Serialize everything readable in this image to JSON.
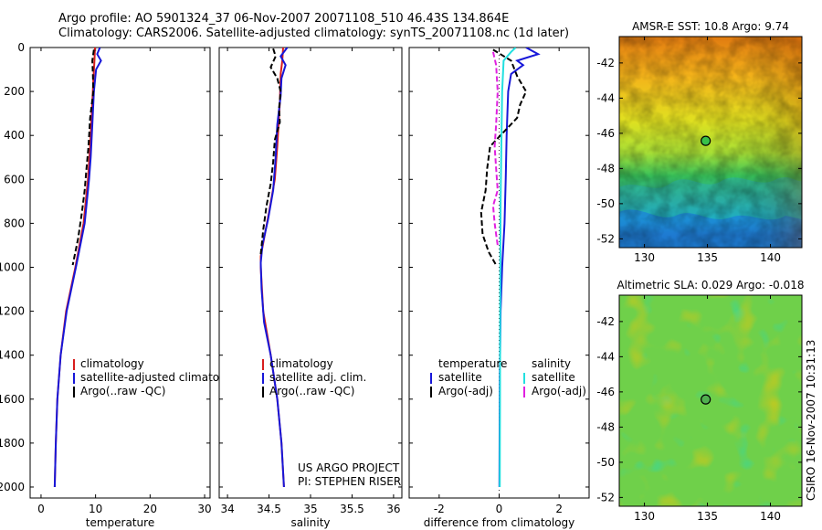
{
  "header": {
    "line1": "Argo profile: AO 5901324_37 06-Nov-2007 20071108_510 46.43S 134.864E",
    "line2": "Climatology: CARS2006. Satellite-adjusted climatology: synTS_20071108.nc (1d later)"
  },
  "side_stamp": "CSIRO 16-Nov-2007 10:31:13",
  "colors": {
    "red": "#d81e1e",
    "blue": "#1717d9",
    "black": "#000000",
    "cyan": "#22e0e0",
    "magenta": "#e020e0"
  },
  "chart_data": [
    {
      "id": "temperature",
      "type": "line",
      "xlabel": "temperature",
      "xlim": [
        -2,
        31
      ],
      "ylim": [
        2050,
        0
      ],
      "xticks": [
        0,
        10,
        20,
        30
      ],
      "yticks": [
        0,
        200,
        400,
        600,
        800,
        1000,
        1200,
        1400,
        1600,
        1800,
        2000
      ],
      "legend": {
        "placement": "lower-middle",
        "entries": [
          "climatology",
          "satellite-adjusted climatology",
          "Argo(..raw -QC)"
        ]
      },
      "series": [
        {
          "name": "climatology",
          "color": "red",
          "dash": "solid",
          "points": [
            [
              9.9,
              0
            ],
            [
              9.8,
              60
            ],
            [
              9.6,
              150
            ],
            [
              9.3,
              300
            ],
            [
              9.0,
              450
            ],
            [
              8.6,
              600
            ],
            [
              7.8,
              800
            ],
            [
              6.3,
              1000
            ],
            [
              4.6,
              1200
            ],
            [
              3.6,
              1400
            ],
            [
              3.0,
              1600
            ],
            [
              2.7,
              1800
            ],
            [
              2.5,
              2000
            ]
          ]
        },
        {
          "name": "satellite-adjusted climatology",
          "color": "blue",
          "dash": "solid",
          "points": [
            [
              10.8,
              0
            ],
            [
              10.3,
              30
            ],
            [
              11.0,
              60
            ],
            [
              10.1,
              100
            ],
            [
              9.7,
              200
            ],
            [
              9.4,
              350
            ],
            [
              9.1,
              500
            ],
            [
              8.8,
              600
            ],
            [
              8.0,
              800
            ],
            [
              6.4,
              1000
            ],
            [
              4.7,
              1200
            ],
            [
              3.6,
              1400
            ],
            [
              3.0,
              1600
            ],
            [
              2.7,
              1800
            ],
            [
              2.5,
              2000
            ]
          ]
        },
        {
          "name": "Argo(..raw -QC)",
          "color": "black",
          "dash": "dash",
          "points": [
            [
              9.7,
              10
            ],
            [
              9.4,
              60
            ],
            [
              9.5,
              120
            ],
            [
              9.6,
              200
            ],
            [
              9.0,
              320
            ],
            [
              8.7,
              450
            ],
            [
              8.3,
              560
            ],
            [
              8.0,
              650
            ],
            [
              7.5,
              750
            ],
            [
              6.8,
              870
            ],
            [
              5.8,
              990
            ]
          ]
        }
      ],
      "annotations": []
    },
    {
      "id": "salinity",
      "type": "line",
      "xlabel": "salinity",
      "xlim": [
        33.9,
        36.1
      ],
      "ylim": [
        2050,
        0
      ],
      "xticks": [
        34,
        34.5,
        35,
        35.5,
        36
      ],
      "xtick_labels": [
        "34",
        "34.5",
        "35",
        "35.5",
        "36"
      ],
      "yticks": [
        0,
        200,
        400,
        600,
        800,
        1000,
        1200,
        1400,
        1600,
        1800,
        2000
      ],
      "legend": {
        "placement": "lower-middle",
        "entries": [
          "climatology",
          "satellite adj. clim.",
          "Argo(..raw -QC)"
        ]
      },
      "series": [
        {
          "name": "climatology",
          "color": "red",
          "dash": "solid",
          "points": [
            [
              34.67,
              0
            ],
            [
              34.66,
              60
            ],
            [
              34.64,
              120
            ],
            [
              34.63,
              250
            ],
            [
              34.6,
              450
            ],
            [
              34.57,
              600
            ],
            [
              34.5,
              750
            ],
            [
              34.44,
              870
            ],
            [
              34.4,
              950
            ],
            [
              34.4,
              1000
            ],
            [
              34.43,
              1200
            ],
            [
              34.52,
              1400
            ],
            [
              34.6,
              1600
            ],
            [
              34.65,
              1800
            ],
            [
              34.68,
              2000
            ]
          ]
        },
        {
          "name": "satellite adj. clim.",
          "color": "blue",
          "dash": "solid",
          "points": [
            [
              34.72,
              0
            ],
            [
              34.64,
              40
            ],
            [
              34.7,
              80
            ],
            [
              34.65,
              140
            ],
            [
              34.64,
              220
            ],
            [
              34.6,
              350
            ],
            [
              34.58,
              500
            ],
            [
              34.55,
              650
            ],
            [
              34.49,
              780
            ],
            [
              34.42,
              900
            ],
            [
              34.4,
              980
            ],
            [
              34.41,
              1100
            ],
            [
              34.44,
              1250
            ],
            [
              34.52,
              1400
            ],
            [
              34.6,
              1600
            ],
            [
              34.65,
              1800
            ],
            [
              34.68,
              2000
            ]
          ]
        },
        {
          "name": "Argo(..raw -QC)",
          "color": "black",
          "dash": "dash",
          "points": [
            [
              34.55,
              5
            ],
            [
              34.58,
              40
            ],
            [
              34.52,
              90
            ],
            [
              34.6,
              140
            ],
            [
              34.64,
              200
            ],
            [
              34.62,
              280
            ],
            [
              34.63,
              340
            ],
            [
              34.57,
              420
            ],
            [
              34.55,
              520
            ],
            [
              34.52,
              620
            ],
            [
              34.47,
              720
            ],
            [
              34.43,
              830
            ],
            [
              34.4,
              940
            ]
          ]
        }
      ],
      "annotations": [
        "US ARGO PROJECT",
        "PI: STEPHEN RISER"
      ]
    },
    {
      "id": "difference",
      "type": "line",
      "xlabel": "difference from climatology",
      "xlim": [
        -3,
        3
      ],
      "ylim": [
        2050,
        0
      ],
      "xticks": [
        -2,
        0,
        2
      ],
      "yticks": [
        0,
        200,
        400,
        600,
        800,
        1000,
        1200,
        1400,
        1600,
        1800,
        2000
      ],
      "legend": {
        "placement": "lower-middle",
        "entries": [
          "temperature",
          "satellite",
          "Argo(-adj)",
          "salinity",
          "satellite",
          "Argo(-adj)"
        ]
      },
      "series": [
        {
          "name": "temperature satellite",
          "color": "blue",
          "dash": "solid",
          "points": [
            [
              0.9,
              0
            ],
            [
              1.3,
              30
            ],
            [
              0.6,
              60
            ],
            [
              0.8,
              80
            ],
            [
              0.4,
              120
            ],
            [
              0.3,
              200
            ],
            [
              0.25,
              400
            ],
            [
              0.22,
              600
            ],
            [
              0.18,
              800
            ],
            [
              0.1,
              1000
            ],
            [
              0.05,
              1200
            ],
            [
              0.02,
              1500
            ],
            [
              0.01,
              2000
            ]
          ]
        },
        {
          "name": "temperature Argo(-adj)",
          "color": "black",
          "dash": "dash",
          "points": [
            [
              -0.2,
              10
            ],
            [
              0.4,
              60
            ],
            [
              0.6,
              130
            ],
            [
              0.9,
              200
            ],
            [
              0.7,
              260
            ],
            [
              0.6,
              320
            ],
            [
              -0.3,
              450
            ],
            [
              -0.4,
              550
            ],
            [
              -0.45,
              650
            ],
            [
              -0.6,
              750
            ],
            [
              -0.55,
              850
            ],
            [
              -0.35,
              930
            ],
            [
              -0.1,
              990
            ]
          ]
        },
        {
          "name": "salinity satellite",
          "color": "cyan",
          "dash": "solid",
          "points": [
            [
              0.55,
              0
            ],
            [
              0.4,
              20
            ],
            [
              0.15,
              60
            ],
            [
              0.1,
              200
            ],
            [
              0.08,
              400
            ],
            [
              0.05,
              700
            ],
            [
              0.04,
              1000
            ],
            [
              0.03,
              1500
            ],
            [
              0.02,
              2000
            ]
          ]
        },
        {
          "name": "salinity Argo(-adj)",
          "color": "magenta",
          "dash": "dash",
          "points": [
            [
              -0.2,
              20
            ],
            [
              -0.1,
              80
            ],
            [
              -0.05,
              200
            ],
            [
              -0.1,
              350
            ],
            [
              -0.15,
              450
            ],
            [
              -0.1,
              550
            ],
            [
              -0.05,
              650
            ],
            [
              -0.2,
              720
            ],
            [
              -0.15,
              800
            ],
            [
              -0.1,
              850
            ],
            [
              -0.05,
              900
            ]
          ]
        }
      ],
      "annotations": []
    },
    {
      "id": "sst_map",
      "type": "heatmap",
      "title": "AMSR-E SST: 10.8 Argo: 9.74",
      "xticks": [
        130,
        135,
        140
      ],
      "yticks": [
        -42,
        -44,
        -46,
        -48,
        -50,
        -52
      ],
      "xlim": [
        128,
        142.5
      ],
      "ylim": [
        -52.5,
        -40.5
      ],
      "marker": {
        "lon": 134.864,
        "lat": -46.43
      }
    },
    {
      "id": "sla_map",
      "type": "heatmap",
      "title": "Altimetric SLA: 0.029 Argo: -0.018",
      "xticks": [
        130,
        135,
        140
      ],
      "yticks": [
        -42,
        -44,
        -46,
        -48,
        -50,
        -52
      ],
      "xlim": [
        128,
        142.5
      ],
      "ylim": [
        -52.5,
        -40.5
      ],
      "marker": {
        "lon": 134.864,
        "lat": -46.43
      }
    }
  ]
}
